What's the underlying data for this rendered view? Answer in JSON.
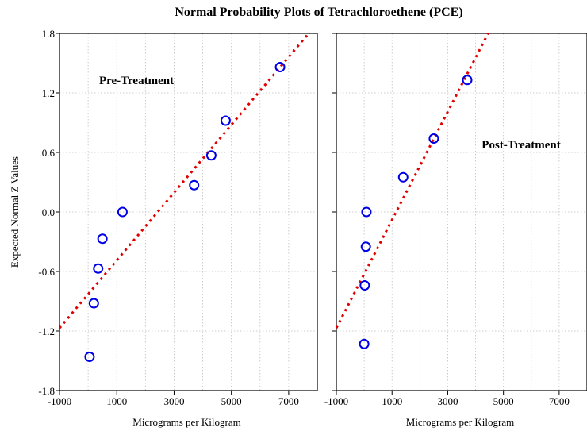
{
  "chart_data": {
    "type": "scatter",
    "title": "Normal Probability Plots of Tetrachloroethene (PCE)",
    "ylabel": "Expected Normal Z Values",
    "ylim": [
      -1.8,
      1.8
    ],
    "yticks": [
      "1.8",
      "1.2",
      "0.6",
      "0.0",
      "-0.6",
      "-1.2",
      "-1.8"
    ],
    "grid": true,
    "panels": [
      {
        "label": "Pre-Treatment",
        "xlabel": "Micrograms per Kilogram",
        "xlim": [
          -1000,
          8000
        ],
        "xticks": [
          "-1000",
          "1000",
          "3000",
          "5000",
          "7000"
        ],
        "fit_line": [
          [
            -1000,
            -1.17
          ],
          [
            7700,
            1.8
          ]
        ],
        "points": [
          {
            "x": 50,
            "y": -1.46
          },
          {
            "x": 200,
            "y": -0.92
          },
          {
            "x": 350,
            "y": -0.57
          },
          {
            "x": 500,
            "y": -0.27
          },
          {
            "x": 1200,
            "y": 0.0
          },
          {
            "x": 3700,
            "y": 0.27
          },
          {
            "x": 4300,
            "y": 0.57
          },
          {
            "x": 4800,
            "y": 0.92
          },
          {
            "x": 6700,
            "y": 1.46
          }
        ]
      },
      {
        "label": "Post-Treatment",
        "xlabel": "Micrograms per Kilogram",
        "xlim": [
          -1000,
          8000
        ],
        "xticks": [
          "-1000",
          "1000",
          "3000",
          "5000",
          "7000"
        ],
        "fit_line": [
          [
            -1000,
            -1.17
          ],
          [
            4450,
            1.8
          ]
        ],
        "points": [
          {
            "x": 0,
            "y": -1.33
          },
          {
            "x": 20,
            "y": -0.74
          },
          {
            "x": 60,
            "y": -0.35
          },
          {
            "x": 80,
            "y": 0.0
          },
          {
            "x": 1400,
            "y": 0.35
          },
          {
            "x": 2500,
            "y": 0.74
          },
          {
            "x": 3700,
            "y": 1.33
          }
        ]
      }
    ],
    "colors": {
      "points": "#0000e6",
      "fit": "#e00000"
    }
  }
}
